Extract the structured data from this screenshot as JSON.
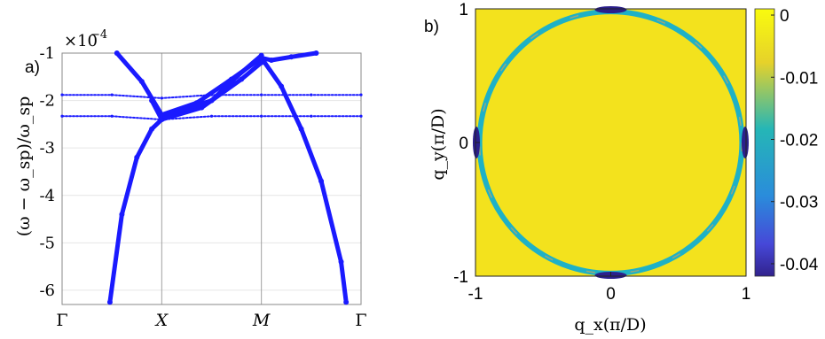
{
  "chart_data": [
    {
      "panel_label": "a)",
      "type": "scatter",
      "ylabel": "(ω − ω_sp)/ω_sp",
      "y_multiplier": "×10",
      "y_exponent": "−4",
      "x_ticks": [
        {
          "label": "Γ",
          "x": 0
        },
        {
          "label": "X",
          "x": 1
        },
        {
          "label": "M",
          "x": 2
        },
        {
          "label": "Γ",
          "x": 3
        }
      ],
      "y_ticks": [
        {
          "label": "-1",
          "y": -1
        },
        {
          "label": "-2",
          "y": -2
        },
        {
          "label": "-3",
          "y": -3
        },
        {
          "label": "-4",
          "y": -4
        },
        {
          "label": "-5",
          "y": -5
        },
        {
          "label": "-6",
          "y": -6
        }
      ],
      "xlim": [
        0,
        3
      ],
      "ylim": [
        -6.3,
        -1
      ],
      "grid": true,
      "series": [
        {
          "x": [
            0.55,
            0.8,
            1.0,
            1.35,
            1.7,
            2.0,
            2.1,
            2.3,
            2.55
          ],
          "y": [
            -1.0,
            -1.6,
            -2.3,
            -2.05,
            -1.55,
            -1.1,
            -1.15,
            -1.08,
            -1.0
          ]
        },
        {
          "x": [
            0.9,
            1.0,
            1.4,
            1.8,
            2.0
          ],
          "y": [
            -2.0,
            -2.4,
            -2.15,
            -1.55,
            -1.2
          ]
        },
        {
          "x": [
            0.48,
            0.6,
            0.75,
            0.9,
            1.0,
            1.2,
            1.5,
            1.75,
            2.0
          ],
          "y": [
            -6.25,
            -4.4,
            -3.2,
            -2.6,
            -2.4,
            -2.2,
            -2.0,
            -1.5,
            -1.05
          ]
        },
        {
          "x": [
            2.0,
            2.2,
            2.4,
            2.6,
            2.8,
            2.85
          ],
          "y": [
            -1.1,
            -1.7,
            -2.6,
            -3.7,
            -5.4,
            -6.25
          ]
        },
        {
          "x": [
            0.0,
            0.5,
            1.0,
            1.5,
            2.0,
            2.5,
            3.0
          ],
          "y": [
            -1.88,
            -1.88,
            -1.95,
            -1.88,
            -1.88,
            -1.88,
            -1.88
          ]
        },
        {
          "x": [
            0.0,
            0.5,
            1.0,
            1.5,
            2.0,
            2.5,
            3.0
          ],
          "y": [
            -2.33,
            -2.33,
            -2.4,
            -2.33,
            -2.33,
            -2.33,
            -2.33
          ]
        }
      ],
      "color": "#1a1aff"
    },
    {
      "panel_label": "b)",
      "type": "heatmap",
      "xlabel": "q_x(π/D)",
      "ylabel": "q_y(π/D)",
      "x_ticks": [
        "-1",
        "0",
        "1"
      ],
      "y_ticks": [
        "1",
        "0",
        "-1"
      ],
      "xlim": [
        -1,
        1
      ],
      "ylim": [
        -1,
        1
      ],
      "ring_radius": 0.97,
      "background_value": 0,
      "ring_min_value": -0.04,
      "colorbar_ticks": [
        "0",
        "-0.01",
        "-0.02",
        "-0.03",
        "-0.04"
      ],
      "colorbar_range": [
        -0.042,
        0.001
      ],
      "colors": {
        "yellow": "#f3e21d",
        "teal": "#1eb1c6",
        "blue": "#3b47d9",
        "navy": "#2b1f8c"
      }
    }
  ]
}
